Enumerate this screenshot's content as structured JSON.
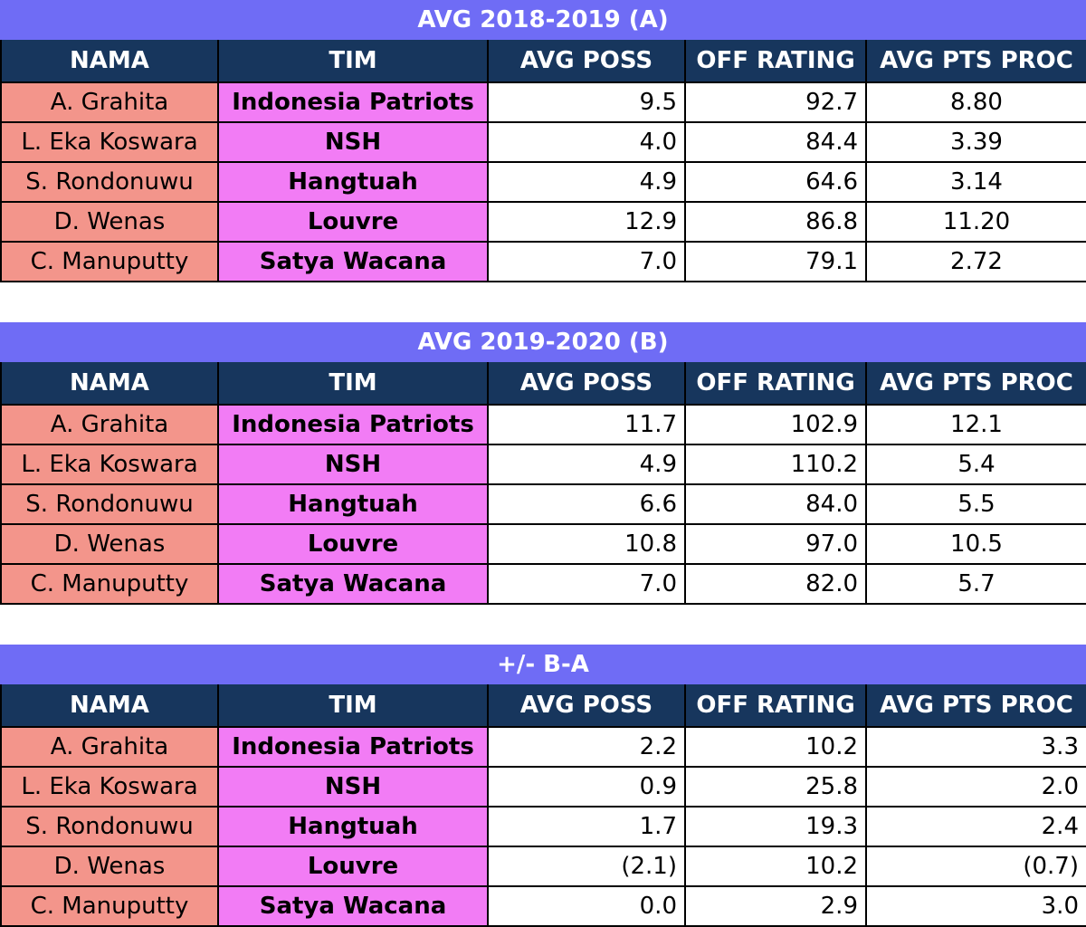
{
  "columns": {
    "nama": "NAMA",
    "tim": "TIM",
    "avg_poss": "AVG POSS",
    "off_rating": "OFF RATING",
    "avg_pts_proc": "AVG PTS PROC"
  },
  "tables": [
    {
      "title": "AVG 2018-2019 (A)",
      "pts_align": "center",
      "rows": [
        {
          "nama": "A. Grahita",
          "tim": "Indonesia Patriots",
          "avg_poss": "9.5",
          "off_rating": "92.7",
          "avg_pts_proc": "8.80"
        },
        {
          "nama": "L. Eka Koswara",
          "tim": "NSH",
          "avg_poss": "4.0",
          "off_rating": "84.4",
          "avg_pts_proc": "3.39"
        },
        {
          "nama": "S. Rondonuwu",
          "tim": "Hangtuah",
          "avg_poss": "4.9",
          "off_rating": "64.6",
          "avg_pts_proc": "3.14"
        },
        {
          "nama": "D. Wenas",
          "tim": "Louvre",
          "avg_poss": "12.9",
          "off_rating": "86.8",
          "avg_pts_proc": "11.20"
        },
        {
          "nama": "C. Manuputty",
          "tim": "Satya Wacana",
          "avg_poss": "7.0",
          "off_rating": "79.1",
          "avg_pts_proc": "2.72"
        }
      ]
    },
    {
      "title": "AVG 2019-2020 (B)",
      "pts_align": "center",
      "rows": [
        {
          "nama": "A. Grahita",
          "tim": "Indonesia Patriots",
          "avg_poss": "11.7",
          "off_rating": "102.9",
          "avg_pts_proc": "12.1"
        },
        {
          "nama": "L. Eka Koswara",
          "tim": "NSH",
          "avg_poss": "4.9",
          "off_rating": "110.2",
          "avg_pts_proc": "5.4"
        },
        {
          "nama": "S. Rondonuwu",
          "tim": "Hangtuah",
          "avg_poss": "6.6",
          "off_rating": "84.0",
          "avg_pts_proc": "5.5"
        },
        {
          "nama": "D. Wenas",
          "tim": "Louvre",
          "avg_poss": "10.8",
          "off_rating": "97.0",
          "avg_pts_proc": "10.5"
        },
        {
          "nama": "C. Manuputty",
          "tim": "Satya Wacana",
          "avg_poss": "7.0",
          "off_rating": "82.0",
          "avg_pts_proc": "5.7"
        }
      ]
    },
    {
      "title": "+/- B-A",
      "pts_align": "right",
      "rows": [
        {
          "nama": "A. Grahita",
          "tim": "Indonesia Patriots",
          "avg_poss": "2.2",
          "off_rating": "10.2",
          "avg_pts_proc": "3.3"
        },
        {
          "nama": "L. Eka Koswara",
          "tim": "NSH",
          "avg_poss": "0.9",
          "off_rating": "25.8",
          "avg_pts_proc": "2.0"
        },
        {
          "nama": "S. Rondonuwu",
          "tim": "Hangtuah",
          "avg_poss": "1.7",
          "off_rating": "19.3",
          "avg_pts_proc": "2.4"
        },
        {
          "nama": "D. Wenas",
          "tim": "Louvre",
          "avg_poss": "(2.1)",
          "off_rating": "10.2",
          "avg_pts_proc": "(0.7)"
        },
        {
          "nama": "C. Manuputty",
          "tim": "Satya Wacana",
          "avg_poss": "0.0",
          "off_rating": "2.9",
          "avg_pts_proc": "3.0"
        }
      ]
    }
  ],
  "colors": {
    "title_bar": "#6f6cf5",
    "header_bg": "#17365d",
    "nama_bg": "#f3958b",
    "tim_bg": "#f27cf5"
  }
}
